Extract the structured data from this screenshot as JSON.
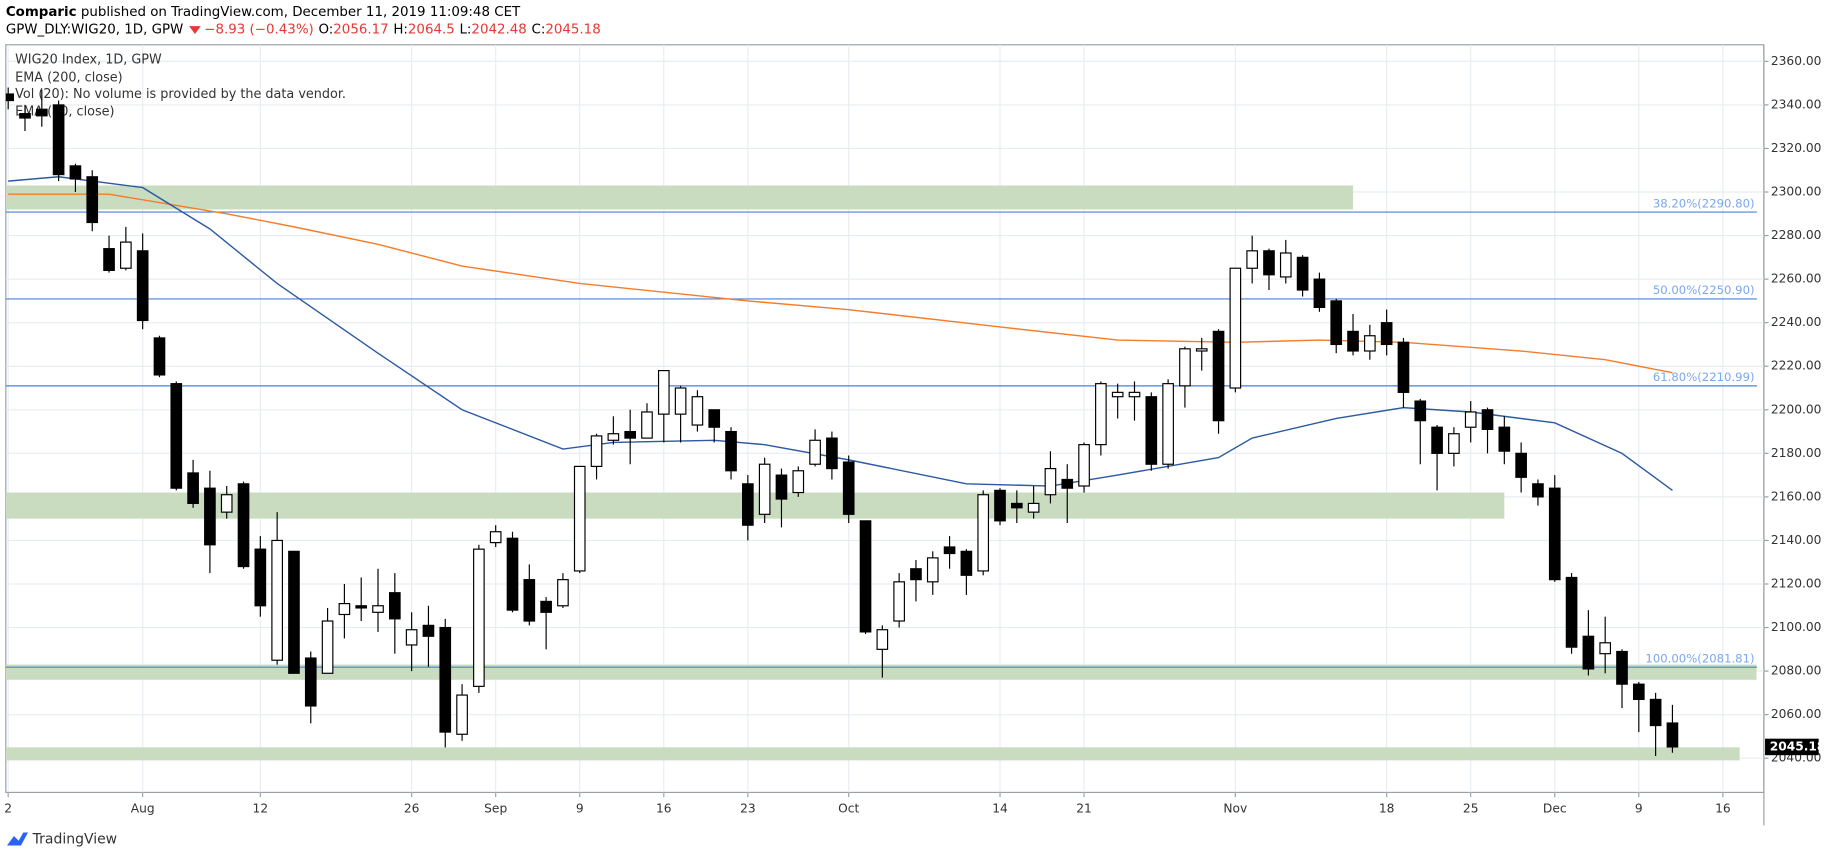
{
  "header": {
    "author": "Comparic",
    "published": "published on TradingView.com, December 11, 2019 11:09:48 CET",
    "symbol": "GPW_DLY:WIG20, 1D, GPW",
    "change": "−8.93 (−0.43%)",
    "open_label": "O:",
    "high_label": "H:",
    "low_label": "L:",
    "close_label": "C:"
  },
  "footer": {
    "brand": "TradingView"
  },
  "chart_data": {
    "type": "candlestick",
    "title": "WIG20 Index, 1D, GPW",
    "indicator_note": "Vol (20): No volume is provided by the data vendor.",
    "x": [
      0,
      1,
      2,
      3,
      4,
      5,
      6,
      7,
      8,
      9,
      10,
      11,
      12,
      13,
      14,
      15,
      16,
      17,
      18,
      19,
      20,
      21,
      22,
      23,
      24,
      25,
      26,
      27,
      28,
      29,
      30,
      31,
      32,
      33,
      34,
      35,
      36,
      37,
      38,
      39,
      40,
      41,
      42,
      43,
      44,
      45,
      46,
      47,
      48,
      49,
      50,
      51,
      52,
      53,
      54,
      55,
      56,
      57,
      58,
      59,
      60,
      61,
      62,
      63,
      64,
      65,
      66,
      67,
      68,
      69,
      70,
      71,
      72,
      73,
      74,
      75,
      76,
      77,
      78,
      79,
      80,
      81,
      82,
      83,
      84,
      85,
      86,
      87,
      88,
      89,
      90,
      91,
      92,
      93,
      94,
      95,
      96,
      97,
      98,
      99
    ],
    "open": [
      2345,
      2336,
      2338,
      2340,
      2312,
      2307,
      2274,
      2265,
      2273,
      2233,
      2212,
      2171,
      2164,
      2153,
      2166,
      2136,
      2085,
      2135,
      2086,
      2079,
      2106,
      2110,
      2107,
      2116,
      2092,
      2101,
      2100,
      2051,
      2073,
      2139,
      2141,
      2122,
      2112,
      2110,
      2126,
      2174,
      2186,
      2190,
      2187,
      2198,
      2198,
      2193,
      2200,
      2190,
      2166,
      2152,
      2170,
      2162,
      2175,
      2187,
      2176,
      2149,
      2090,
      2103,
      2127,
      2121,
      2137,
      2135,
      2126,
      2163,
      2157,
      2153,
      2161,
      2168,
      2165,
      2184,
      2206,
      2206,
      2206,
      2175,
      2211,
      2227,
      2236,
      2210,
      2265,
      2273,
      2261,
      2270,
      2260,
      2250,
      2236,
      2227,
      2240,
      2231,
      2204,
      2192,
      2180,
      2192,
      2200,
      2192,
      2180,
      2166,
      2164,
      2123,
      2096,
      2088,
      2089,
      2074,
      2067,
      2056.17
    ],
    "high": [
      2348,
      2340,
      2347,
      2342,
      2313,
      2310,
      2280,
      2284,
      2281,
      2234,
      2213,
      2177,
      2172,
      2165,
      2167,
      2142,
      2153,
      2135,
      2089,
      2109,
      2120,
      2123,
      2127,
      2125,
      2107,
      2110,
      2104,
      2074,
      2138,
      2147,
      2144,
      2129,
      2114,
      2125,
      2174,
      2189,
      2197,
      2200,
      2203,
      2218,
      2211,
      2209,
      2200,
      2192,
      2170,
      2178,
      2173,
      2174,
      2191,
      2190,
      2179,
      2149,
      2101,
      2125,
      2131,
      2135,
      2142,
      2136,
      2163,
      2164,
      2163,
      2165,
      2181,
      2175,
      2185,
      2213,
      2212,
      2213,
      2208,
      2214,
      2229,
      2233,
      2237,
      2265,
      2280,
      2274,
      2278,
      2271,
      2263,
      2251,
      2244,
      2239,
      2246,
      2233,
      2205,
      2193,
      2192,
      2204,
      2201,
      2197,
      2185,
      2168,
      2170,
      2125,
      2108,
      2105,
      2090,
      2075,
      2070,
      2064.5
    ],
    "low": [
      2338,
      2328,
      2330,
      2305,
      2300,
      2282,
      2263,
      2264,
      2237,
      2215,
      2163,
      2155,
      2125,
      2150,
      2127,
      2105,
      2083,
      2079,
      2056,
      2079,
      2095,
      2103,
      2098,
      2088,
      2080,
      2082,
      2045,
      2048,
      2070,
      2137,
      2107,
      2101,
      2090,
      2109,
      2125,
      2168,
      2184,
      2175,
      2187,
      2185,
      2185,
      2190,
      2185,
      2168,
      2140,
      2148,
      2146,
      2160,
      2174,
      2168,
      2148,
      2097,
      2077,
      2100,
      2112,
      2115,
      2127,
      2115,
      2124,
      2147,
      2148,
      2150,
      2157,
      2148,
      2162,
      2179,
      2196,
      2195,
      2172,
      2173,
      2201,
      2218,
      2189,
      2208,
      2258,
      2255,
      2258,
      2252,
      2245,
      2226,
      2225,
      2223,
      2225,
      2201,
      2175,
      2163,
      2174,
      2185,
      2180,
      2175,
      2162,
      2156,
      2121,
      2088,
      2078,
      2079,
      2063,
      2052,
      2041,
      2042.48
    ],
    "close": [
      2342,
      2334,
      2335,
      2308,
      2306,
      2286,
      2264,
      2277,
      2241,
      2216,
      2164,
      2157,
      2138,
      2161,
      2128,
      2110,
      2140,
      2079,
      2064,
      2103,
      2111,
      2109,
      2110,
      2104,
      2099,
      2096,
      2052,
      2069,
      2136,
      2144,
      2108,
      2103,
      2107,
      2122,
      2174,
      2188,
      2189,
      2187,
      2199,
      2218,
      2210,
      2206,
      2192,
      2172,
      2147,
      2175,
      2159,
      2172,
      2186,
      2173,
      2152,
      2098,
      2099,
      2121,
      2122,
      2132,
      2134,
      2124,
      2161,
      2149,
      2155,
      2157,
      2173,
      2164,
      2184,
      2212,
      2208,
      2208,
      2175,
      2212,
      2228,
      2228,
      2195,
      2265,
      2273,
      2262,
      2272,
      2255,
      2247,
      2230,
      2227,
      2234,
      2230,
      2208,
      2195,
      2180,
      2189,
      2199,
      2191,
      2181,
      2169,
      2160,
      2122,
      2091,
      2081,
      2093,
      2074,
      2067,
      2055,
      2045.18
    ],
    "up_color": "#ffffff",
    "down_color": "#000000",
    "series": [
      {
        "name": "EMA (200, close)",
        "color": "#f57c2a",
        "x": [
          0,
          6,
          13,
          17,
          22,
          27,
          34,
          44,
          50,
          59,
          66,
          73,
          78,
          83,
          90,
          95,
          99
        ],
        "values": [
          2299,
          2299,
          2290,
          2284,
          2276,
          2266,
          2258,
          2250,
          2246,
          2238,
          2232,
          2231,
          2232,
          2231,
          2227,
          2223,
          2217
        ]
      },
      {
        "name": "EMA (50, close)",
        "color": "#2c5aa0",
        "x": [
          0,
          3,
          8,
          12,
          16,
          22,
          27,
          33,
          36,
          42,
          45,
          50,
          57,
          62,
          66,
          72,
          74,
          79,
          83,
          87,
          92,
          96,
          99
        ],
        "values": [
          2305,
          2307,
          2302,
          2283,
          2258,
          2226,
          2200,
          2182,
          2185,
          2186,
          2184,
          2177,
          2166,
          2165,
          2170,
          2178,
          2187,
          2196,
          2201,
          2199,
          2194,
          2180,
          2163
        ]
      }
    ],
    "levels": [
      {
        "value": 2290.8,
        "label": "38.20%(2290.80)"
      },
      {
        "value": 2250.9,
        "label": "50.00%(2250.90)"
      },
      {
        "value": 2210.99,
        "label": "61.80%(2210.99)"
      },
      {
        "value": 2081.81,
        "label": "100.00%(2081.81)"
      }
    ],
    "level_color": "#4a80d8",
    "zones": [
      {
        "low": 2292,
        "high": 2303,
        "end": 80
      },
      {
        "low": 2150,
        "high": 2162,
        "end": 89
      },
      {
        "low": 2076,
        "high": 2083,
        "end": 104
      },
      {
        "low": 2039,
        "high": 2045,
        "end": 103
      }
    ],
    "zone_color": "#c9dcc0",
    "xlim": [
      -0.14,
      104.44
    ],
    "ylim": [
      2024.3,
      2367.6
    ],
    "xticks": [
      {
        "value": 0,
        "label": "2"
      },
      {
        "value": 8,
        "label": "Aug"
      },
      {
        "value": 15,
        "label": "12"
      },
      {
        "value": 24,
        "label": "26"
      },
      {
        "value": 29,
        "label": "Sep"
      },
      {
        "value": 34,
        "label": "9"
      },
      {
        "value": 39,
        "label": "16"
      },
      {
        "value": 44,
        "label": "23"
      },
      {
        "value": 50,
        "label": "Oct"
      },
      {
        "value": 59,
        "label": "14"
      },
      {
        "value": 64,
        "label": "21"
      },
      {
        "value": 73,
        "label": "Nov"
      },
      {
        "value": 82,
        "label": "18"
      },
      {
        "value": 87,
        "label": "25"
      },
      {
        "value": 92,
        "label": "Dec"
      },
      {
        "value": 97,
        "label": "9"
      },
      {
        "value": 102,
        "label": "16"
      }
    ],
    "yticks": [
      {
        "value": 2040,
        "label": "2040.00"
      },
      {
        "value": 2060,
        "label": "2060.00"
      },
      {
        "value": 2080,
        "label": "2080.00"
      },
      {
        "value": 2100,
        "label": "2100.00"
      },
      {
        "value": 2120,
        "label": "2120.00"
      },
      {
        "value": 2140,
        "label": "2140.00"
      },
      {
        "value": 2160,
        "label": "2160.00"
      },
      {
        "value": 2180,
        "label": "2180.00"
      },
      {
        "value": 2200,
        "label": "2200.00"
      },
      {
        "value": 2220,
        "label": "2220.00"
      },
      {
        "value": 2240,
        "label": "2240.00"
      },
      {
        "value": 2260,
        "label": "2260.00"
      },
      {
        "value": 2280,
        "label": "2280.00"
      },
      {
        "value": 2300,
        "label": "2300.00"
      },
      {
        "value": 2320,
        "label": "2320.00"
      },
      {
        "value": 2340,
        "label": "2340.00"
      },
      {
        "value": 2360,
        "label": "2360.00"
      }
    ],
    "grid": true
  }
}
